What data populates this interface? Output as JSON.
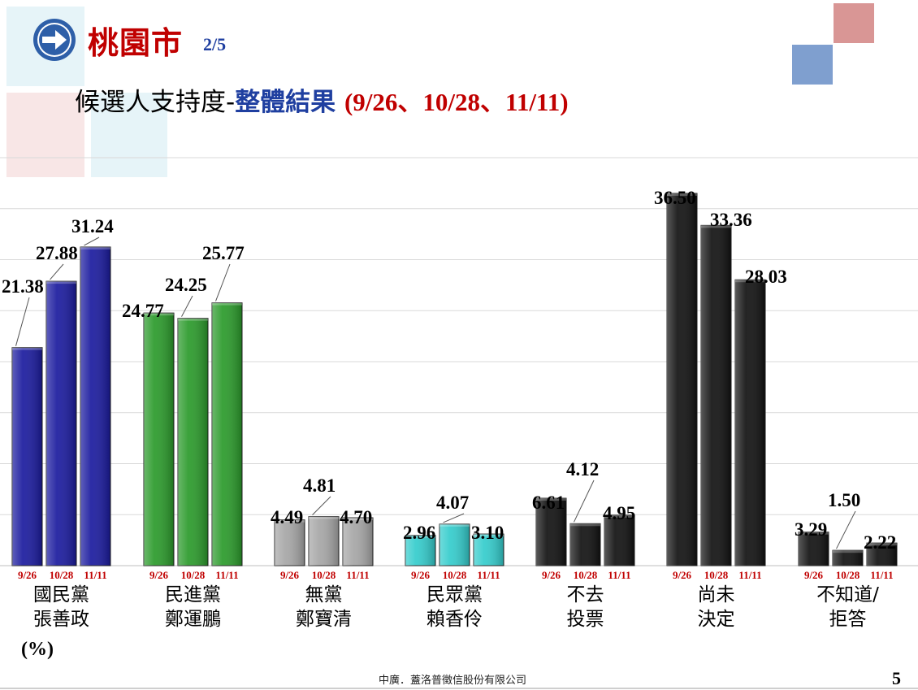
{
  "header": {
    "title": "桃園市",
    "page": "2/5",
    "subtitle_prefix": "候選人支持度-",
    "subtitle_highlight": "整體結果",
    "subtitle_dates": "(9/26、10/28、11/11)"
  },
  "chart_data": {
    "type": "bar",
    "unit_label": "(%)",
    "ylim": [
      0,
      40
    ],
    "grid": true,
    "dates": [
      "9/26",
      "10/28",
      "11/11"
    ],
    "groups": [
      {
        "line1": "國民黨",
        "line2": "張善政",
        "values": [
          21.38,
          27.88,
          31.24
        ],
        "labels": [
          "21.38",
          "27.88",
          "31.24"
        ],
        "color": "#1a1a9e"
      },
      {
        "line1": "民進黨",
        "line2": "鄭運鵬",
        "values": [
          24.77,
          24.25,
          25.77
        ],
        "labels": [
          "24.77",
          "24.25",
          "25.77"
        ],
        "color": "#2a9a2a"
      },
      {
        "line1": "無黨",
        "line2": "鄭寶清",
        "values": [
          4.49,
          4.81,
          4.7
        ],
        "labels": [
          "4.49",
          "4.81",
          "4.70"
        ],
        "color": "#a6a6a6"
      },
      {
        "line1": "民眾黨",
        "line2": "賴香伶",
        "values": [
          2.96,
          4.07,
          3.1
        ],
        "labels": [
          "2.96",
          "4.07",
          "3.10"
        ],
        "color": "#33cccc"
      },
      {
        "line1": "不去",
        "line2": "投票",
        "values": [
          6.61,
          4.12,
          4.95
        ],
        "labels": [
          "6.61",
          "4.12",
          "4.95"
        ],
        "color": "#111111"
      },
      {
        "line1": "尚未",
        "line2": "決定",
        "values": [
          36.5,
          33.36,
          28.03
        ],
        "labels": [
          "36.50",
          "33.36",
          "28.03"
        ],
        "color": "#111111"
      },
      {
        "line1": "不知道/",
        "line2": "拒答",
        "values": [
          3.29,
          1.5,
          2.22
        ],
        "labels": [
          "3.29",
          "1.50",
          "2.22"
        ],
        "color": "#111111"
      }
    ]
  },
  "footer": {
    "company": "中廣．蓋洛普徵信股份有限公司",
    "page_number": "5"
  }
}
